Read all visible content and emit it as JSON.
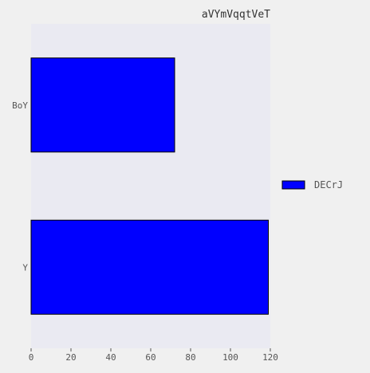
{
  "chart_data": {
    "type": "bar",
    "orientation": "horizontal",
    "title": "aVYmVqqtVeT",
    "xlabel": "",
    "ylabel": "",
    "categories": [
      "BoY",
      "Y"
    ],
    "series": [
      {
        "name": "DECrJ",
        "values": [
          72,
          119
        ]
      }
    ],
    "xlim": [
      0,
      120
    ],
    "xticks": [
      0,
      20,
      40,
      60,
      80,
      100,
      120
    ],
    "grid": false,
    "legend_position": "right",
    "colors": {
      "bar": "#0000ff",
      "bar_edge": "#000000",
      "plot_background": "#eaeaf2",
      "page_background": "#f0f0f0",
      "text": "#555555"
    }
  }
}
